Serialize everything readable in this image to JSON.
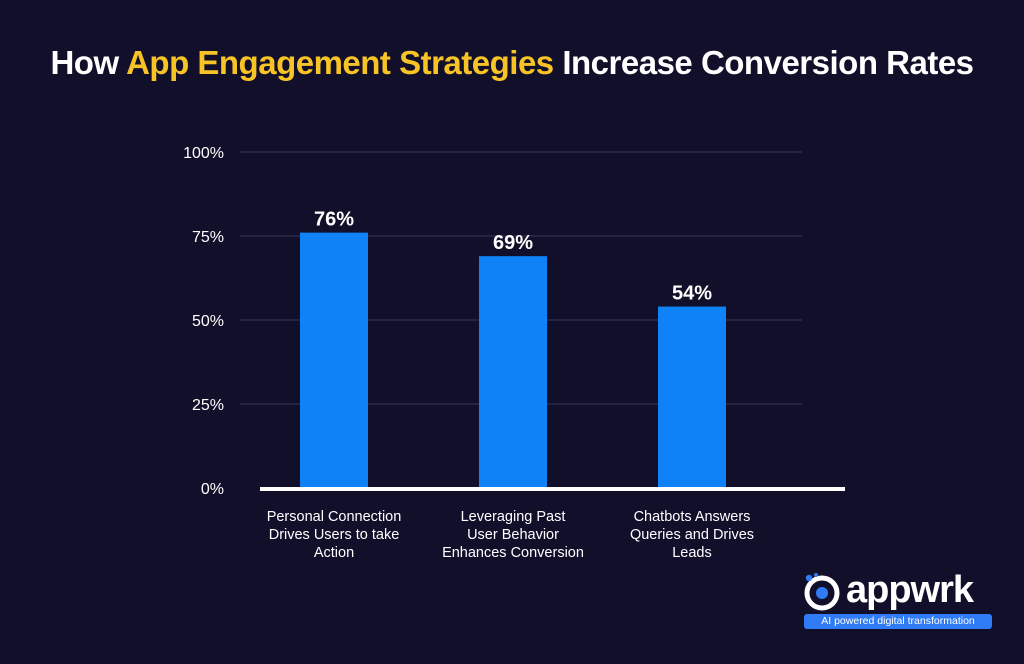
{
  "title": {
    "prefix": "How ",
    "highlight": "App Engagement Strategies",
    "suffix": " Increase Conversion Rates",
    "highlight_color": "#f7c325"
  },
  "chart_data": {
    "type": "bar",
    "categories": [
      "Personal Connection Drives Users to take Action",
      "Leveraging Past User Behavior Enhances Conversion",
      "Chatbots Answers Queries and Drives Leads"
    ],
    "category_lines": [
      [
        "Personal Connection",
        "Drives Users to take",
        "Action"
      ],
      [
        "Leveraging Past",
        "User Behavior",
        "Enhances Conversion"
      ],
      [
        "Chatbots Answers",
        "Queries and Drives",
        "Leads"
      ]
    ],
    "values": [
      76,
      69,
      54
    ],
    "value_labels": [
      "76%",
      "69%",
      "54%"
    ],
    "yticks": [
      0,
      25,
      50,
      75,
      100
    ],
    "ytick_labels": [
      "0%",
      "25%",
      "50%",
      "75%",
      "100%"
    ],
    "ylim": [
      0,
      100
    ],
    "grid": true,
    "bar_color": "#0f82f7",
    "xlabel": "",
    "ylabel": ""
  },
  "brand": {
    "name": "appwrk",
    "tagline": "AI powered digital transformation",
    "accent": "#2f7cf6"
  }
}
